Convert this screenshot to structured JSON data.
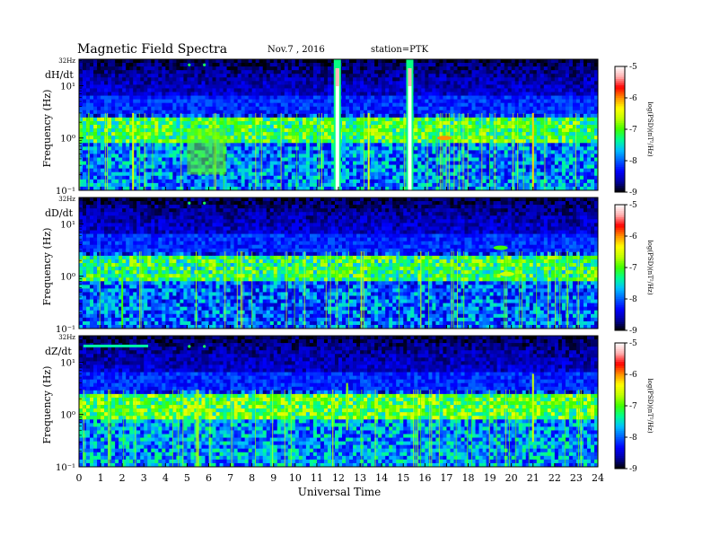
{
  "header": {
    "title": "Magnetic  Field  Spectra",
    "date": "Nov.7  , 2016",
    "station": "station=PTK"
  },
  "colors": {
    "colormap": [
      "#000000",
      "#0000a0",
      "#0000ff",
      "#0060ff",
      "#00c0ff",
      "#00ff90",
      "#40ff00",
      "#c0ff00",
      "#ffff00",
      "#ff9000",
      "#ff0000",
      "#ffb0b0",
      "#ffffff"
    ]
  },
  "chart_data": [
    {
      "type": "heatmap",
      "panel_label": "dH/dt",
      "ylabel": "Frequency  (Hz)",
      "y_top_label": "32Hz",
      "y_ticks": [
        "10¹",
        "10⁰",
        "10⁻¹"
      ],
      "y_scale": "log",
      "ylim": [
        0.1,
        32
      ],
      "xlim": [
        0,
        24
      ],
      "colorbar": {
        "label": "log(PSD)(nT²/Hz)",
        "ticks": [
          "-5",
          "-6",
          "-7",
          "-8",
          "-9"
        ],
        "range": [
          -9,
          -5
        ]
      },
      "background_level": -8.0,
      "features": [
        {
          "t": 5.1,
          "f": 25,
          "value": -7.2,
          "kind": "dot"
        },
        {
          "t": 5.8,
          "f": 25,
          "value": -7.2,
          "kind": "dot"
        },
        {
          "t": 5.0,
          "t_end": 6.8,
          "f_low": 0.2,
          "f_high": 1.5,
          "value": -6.9,
          "kind": "patch"
        },
        {
          "t": 11.95,
          "f_low": 0.1,
          "f_high": 32,
          "value": -5.0,
          "kind": "burst"
        },
        {
          "t": 15.3,
          "f_low": 0.1,
          "f_high": 32,
          "value": -5.0,
          "kind": "burst"
        },
        {
          "t": 16.9,
          "f": 1.0,
          "value": -6.0,
          "kind": "blob"
        },
        {
          "t": 2.5,
          "f_low": 0.1,
          "f_high": 3,
          "value": -6.5,
          "kind": "spike"
        },
        {
          "t": 13.4,
          "f_low": 0.1,
          "f_high": 3,
          "value": -6.5,
          "kind": "spike"
        },
        {
          "t": 21.0,
          "f_low": 0.1,
          "f_high": 3,
          "value": -6.2,
          "kind": "spike"
        }
      ]
    },
    {
      "type": "heatmap",
      "panel_label": "dD/dt",
      "ylabel": "Frequency  (Hz)",
      "y_top_label": "32Hz",
      "y_ticks": [
        "10¹",
        "10⁰",
        "10⁻¹"
      ],
      "y_scale": "log",
      "ylim": [
        0.1,
        32
      ],
      "xlim": [
        0,
        24
      ],
      "colorbar": {
        "label": "log(PSD)(nT²/Hz)",
        "ticks": [
          "-5",
          "-6",
          "-7",
          "-8",
          "-9"
        ],
        "range": [
          -9,
          -5
        ]
      },
      "background_level": -8.1,
      "features": [
        {
          "t": 5.1,
          "f": 25,
          "value": -7.2,
          "kind": "dot"
        },
        {
          "t": 5.8,
          "f": 25,
          "value": -7.2,
          "kind": "dot"
        },
        {
          "t": 19.8,
          "f": 1.1,
          "value": -6.6,
          "kind": "blob"
        },
        {
          "t": 19.5,
          "f": 3.5,
          "value": -7.0,
          "kind": "blob"
        },
        {
          "t": 2.0,
          "f_low": 0.1,
          "f_high": 1.5,
          "value": -7.0,
          "kind": "spike"
        }
      ]
    },
    {
      "type": "heatmap",
      "panel_label": "dZ/dt",
      "ylabel": "Frequency  (Hz)",
      "y_top_label": "32Hz",
      "y_ticks": [
        "10¹",
        "10⁰",
        "10⁻¹"
      ],
      "y_scale": "log",
      "ylim": [
        0.1,
        32
      ],
      "xlim": [
        0,
        24
      ],
      "colorbar": {
        "label": "log(PSD)(nT²/Hz)",
        "ticks": [
          "-5",
          "-6",
          "-7",
          "-8",
          "-9"
        ],
        "range": [
          -9,
          -5
        ]
      },
      "background_level": -7.9,
      "features": [
        {
          "t": 0.2,
          "t_end": 3.2,
          "f": 20,
          "value": -7.4,
          "kind": "band"
        },
        {
          "t": 5.1,
          "f": 20,
          "value": -7.2,
          "kind": "dot"
        },
        {
          "t": 5.8,
          "f": 20,
          "value": -7.2,
          "kind": "dot"
        },
        {
          "t": 5.5,
          "f_low": 0.1,
          "f_high": 3,
          "value": -6.7,
          "kind": "spike"
        },
        {
          "t": 12.4,
          "f_low": 0.5,
          "f_high": 4,
          "value": -6.8,
          "kind": "spike"
        },
        {
          "t": 21.0,
          "f_low": 0.3,
          "f_high": 6,
          "value": -6.6,
          "kind": "spike"
        }
      ]
    }
  ],
  "x_axis": {
    "label": "Universal Time",
    "ticks": [
      "0",
      "1",
      "2",
      "3",
      "4",
      "5",
      "6",
      "7",
      "8",
      "9",
      "10",
      "11",
      "12",
      "13",
      "14",
      "15",
      "16",
      "17",
      "18",
      "19",
      "20",
      "21",
      "22",
      "23",
      "24"
    ]
  }
}
